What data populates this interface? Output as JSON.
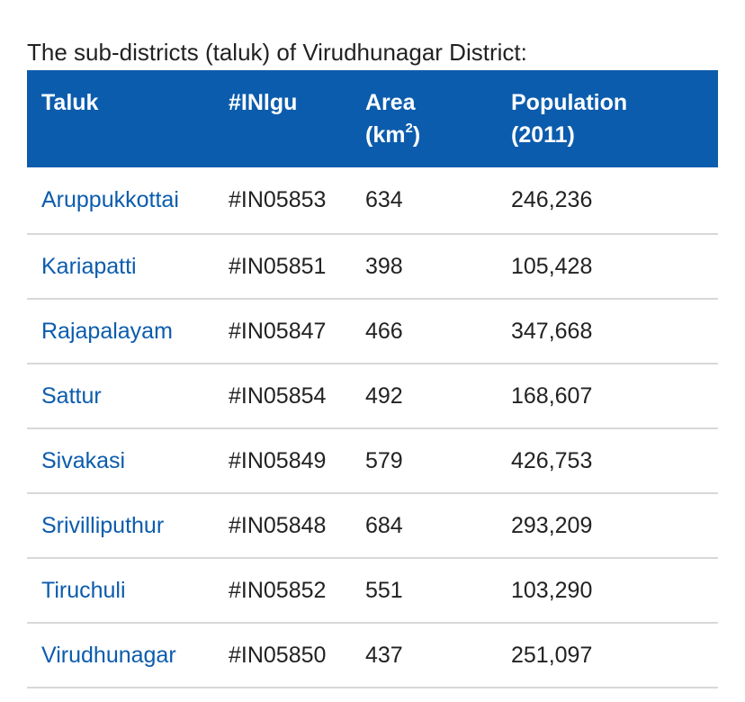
{
  "caption": "The sub-districts (taluk) of Virudhunagar District:",
  "table": {
    "headers": {
      "taluk": "Taluk",
      "code": "#INlgu",
      "area_line1": "Area",
      "area_unit": "(km",
      "area_sup": "2",
      "area_close": ")",
      "population_line1": "Population",
      "population_line2": "(2011)"
    },
    "rows": [
      {
        "taluk": "Aruppukkottai",
        "code": "#IN05853",
        "area": "634",
        "population": "246,236"
      },
      {
        "taluk": "Kariapatti",
        "code": "#IN05851",
        "area": "398",
        "population": "105,428"
      },
      {
        "taluk": "Rajapalayam",
        "code": "#IN05847",
        "area": "466",
        "population": "347,668"
      },
      {
        "taluk": "Sattur",
        "code": "#IN05854",
        "area": "492",
        "population": "168,607"
      },
      {
        "taluk": "Sivakasi",
        "code": "#IN05849",
        "area": "579",
        "population": "426,753"
      },
      {
        "taluk": "Srivilliputhur",
        "code": "#IN05848",
        "area": "684",
        "population": "293,209"
      },
      {
        "taluk": "Tiruchuli",
        "code": "#IN05852",
        "area": "551",
        "population": "103,290"
      },
      {
        "taluk": "Virudhunagar",
        "code": "#IN05850",
        "area": "437",
        "population": "251,097"
      }
    ]
  },
  "colors": {
    "header_bg": "#0b5cad",
    "link": "#0b5cad",
    "row_border": "#d8d8d8"
  }
}
